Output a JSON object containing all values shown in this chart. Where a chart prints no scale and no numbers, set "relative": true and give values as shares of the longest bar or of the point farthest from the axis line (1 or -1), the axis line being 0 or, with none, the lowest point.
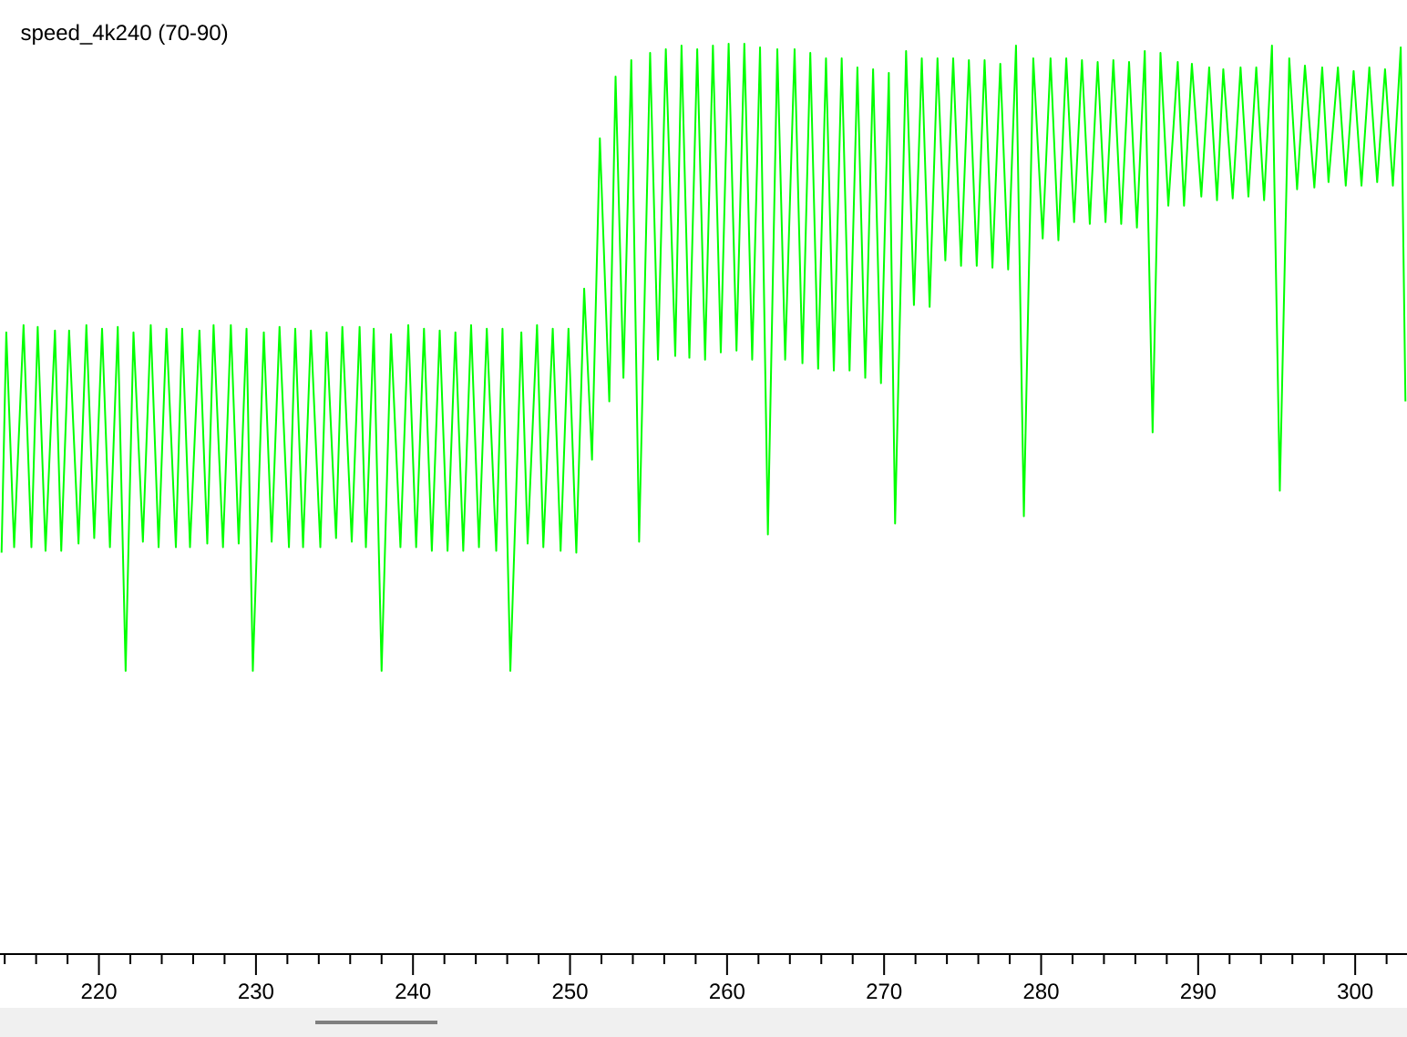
{
  "chart_data": {
    "type": "line",
    "title": "speed_4k240 (70-90)",
    "relative": true,
    "tick_labels": "x",
    "xlim": [
      213.7,
      303.3
    ],
    "xticks": [
      {
        "value": 214,
        "label": null
      },
      {
        "value": 216,
        "label": null
      },
      {
        "value": 218,
        "label": null
      },
      220,
      {
        "value": 222,
        "label": null
      },
      {
        "value": 224,
        "label": null
      },
      {
        "value": 226,
        "label": null
      },
      {
        "value": 228,
        "label": null
      },
      230,
      {
        "value": 232,
        "label": null
      },
      {
        "value": 234,
        "label": null
      },
      {
        "value": 236,
        "label": null
      },
      {
        "value": 238,
        "label": null
      },
      240,
      {
        "value": 242,
        "label": null
      },
      {
        "value": 244,
        "label": null
      },
      {
        "value": 246,
        "label": null
      },
      {
        "value": 248,
        "label": null
      },
      250,
      {
        "value": 252,
        "label": null
      },
      {
        "value": 254,
        "label": null
      },
      {
        "value": 256,
        "label": null
      },
      {
        "value": 258,
        "label": null
      },
      260,
      {
        "value": 262,
        "label": null
      },
      {
        "value": 264,
        "label": null
      },
      {
        "value": 266,
        "label": null
      },
      {
        "value": 268,
        "label": null
      },
      270,
      {
        "value": 272,
        "label": null
      },
      {
        "value": 274,
        "label": null
      },
      {
        "value": 276,
        "label": null
      },
      {
        "value": 278,
        "label": null
      },
      280,
      {
        "value": 282,
        "label": null
      },
      {
        "value": 284,
        "label": null
      },
      {
        "value": 286,
        "label": null
      },
      {
        "value": 288,
        "label": null
      },
      290,
      {
        "value": 292,
        "label": null
      },
      {
        "value": 294,
        "label": null
      },
      {
        "value": 296,
        "label": null
      },
      {
        "value": 298,
        "label": null
      },
      300,
      {
        "value": 302,
        "label": null
      }
    ],
    "x": [
      213.8,
      214.1,
      214.6,
      215.2,
      215.7,
      216.1,
      216.6,
      217.2,
      217.6,
      218.1,
      218.7,
      219.2,
      219.7,
      220.2,
      220.7,
      221.2,
      221.7,
      222.2,
      222.8,
      223.3,
      223.8,
      224.3,
      224.9,
      225.3,
      225.8,
      226.4,
      226.9,
      227.3,
      227.9,
      228.4,
      228.9,
      229.4,
      229.8,
      230.5,
      231.0,
      231.5,
      232.1,
      232.5,
      233.0,
      233.5,
      234.1,
      234.5,
      235.1,
      235.5,
      236.1,
      236.6,
      237.0,
      237.5,
      238.0,
      238.6,
      239.2,
      239.7,
      240.2,
      240.7,
      241.2,
      241.7,
      242.2,
      242.7,
      243.2,
      243.7,
      244.2,
      244.7,
      245.3,
      245.7,
      246.2,
      246.9,
      247.3,
      247.9,
      248.3,
      248.9,
      249.4,
      249.9,
      250.4,
      250.9,
      251.4,
      251.9,
      252.5,
      252.9,
      253.4,
      253.9,
      254.4,
      255.1,
      255.6,
      256.1,
      256.7,
      257.1,
      257.6,
      258.1,
      258.6,
      259.1,
      259.6,
      260.1,
      260.6,
      261.1,
      261.6,
      262.1,
      262.6,
      263.2,
      263.7,
      264.3,
      264.8,
      265.3,
      265.8,
      266.3,
      266.8,
      267.3,
      267.8,
      268.3,
      268.8,
      269.3,
      269.8,
      270.3,
      270.7,
      271.4,
      271.9,
      272.4,
      272.9,
      273.4,
      273.9,
      274.4,
      274.9,
      275.4,
      275.9,
      276.4,
      276.9,
      277.4,
      277.9,
      278.4,
      278.9,
      279.5,
      280.1,
      280.6,
      281.1,
      281.6,
      282.1,
      282.6,
      283.1,
      283.6,
      284.1,
      284.6,
      285.1,
      285.6,
      286.1,
      286.6,
      287.1,
      287.6,
      288.1,
      288.7,
      289.1,
      289.6,
      290.2,
      290.7,
      291.2,
      291.6,
      292.2,
      292.7,
      293.2,
      293.7,
      294.2,
      294.7,
      295.2,
      295.8,
      296.3,
      296.8,
      297.4,
      297.9,
      298.3,
      298.9,
      299.4,
      299.9,
      300.4,
      300.9,
      301.4,
      301.9,
      302.4,
      302.9,
      303.2
    ],
    "series": [
      {
        "color": "#00ff00",
        "values": [
          0.441,
          0.683,
          0.447,
          0.691,
          0.447,
          0.689,
          0.443,
          0.685,
          0.443,
          0.685,
          0.451,
          0.691,
          0.457,
          0.687,
          0.447,
          0.689,
          0.311,
          0.683,
          0.453,
          0.691,
          0.447,
          0.687,
          0.447,
          0.687,
          0.447,
          0.685,
          0.451,
          0.691,
          0.447,
          0.691,
          0.451,
          0.687,
          0.311,
          0.683,
          0.453,
          0.689,
          0.447,
          0.687,
          0.447,
          0.685,
          0.447,
          0.683,
          0.457,
          0.689,
          0.453,
          0.689,
          0.447,
          0.687,
          0.311,
          0.681,
          0.447,
          0.691,
          0.447,
          0.687,
          0.443,
          0.685,
          0.443,
          0.683,
          0.443,
          0.691,
          0.447,
          0.687,
          0.443,
          0.687,
          0.311,
          0.683,
          0.451,
          0.691,
          0.447,
          0.687,
          0.443,
          0.687,
          0.441,
          0.731,
          0.543,
          0.896,
          0.607,
          0.964,
          0.633,
          0.982,
          0.453,
          0.99,
          0.653,
          0.994,
          0.657,
          0.998,
          0.655,
          0.994,
          0.653,
          0.998,
          0.661,
          1.0,
          0.663,
          1.0,
          0.653,
          0.996,
          0.461,
          0.994,
          0.653,
          0.994,
          0.649,
          0.99,
          0.643,
          0.984,
          0.641,
          0.984,
          0.641,
          0.974,
          0.633,
          0.972,
          0.627,
          0.968,
          0.473,
          0.992,
          0.713,
          0.984,
          0.711,
          0.984,
          0.762,
          0.984,
          0.756,
          0.982,
          0.756,
          0.982,
          0.754,
          0.978,
          0.752,
          0.998,
          0.481,
          0.984,
          0.786,
          0.984,
          0.784,
          0.984,
          0.804,
          0.982,
          0.802,
          0.98,
          0.804,
          0.982,
          0.802,
          0.98,
          0.798,
          0.992,
          0.573,
          0.99,
          0.822,
          0.98,
          0.822,
          0.978,
          0.832,
          0.974,
          0.828,
          0.972,
          0.83,
          0.974,
          0.832,
          0.974,
          0.828,
          0.998,
          0.509,
          0.984,
          0.84,
          0.976,
          0.842,
          0.974,
          0.848,
          0.974,
          0.844,
          0.97,
          0.844,
          0.974,
          0.848,
          0.972,
          0.844,
          0.996,
          0.607
        ]
      }
    ]
  }
}
